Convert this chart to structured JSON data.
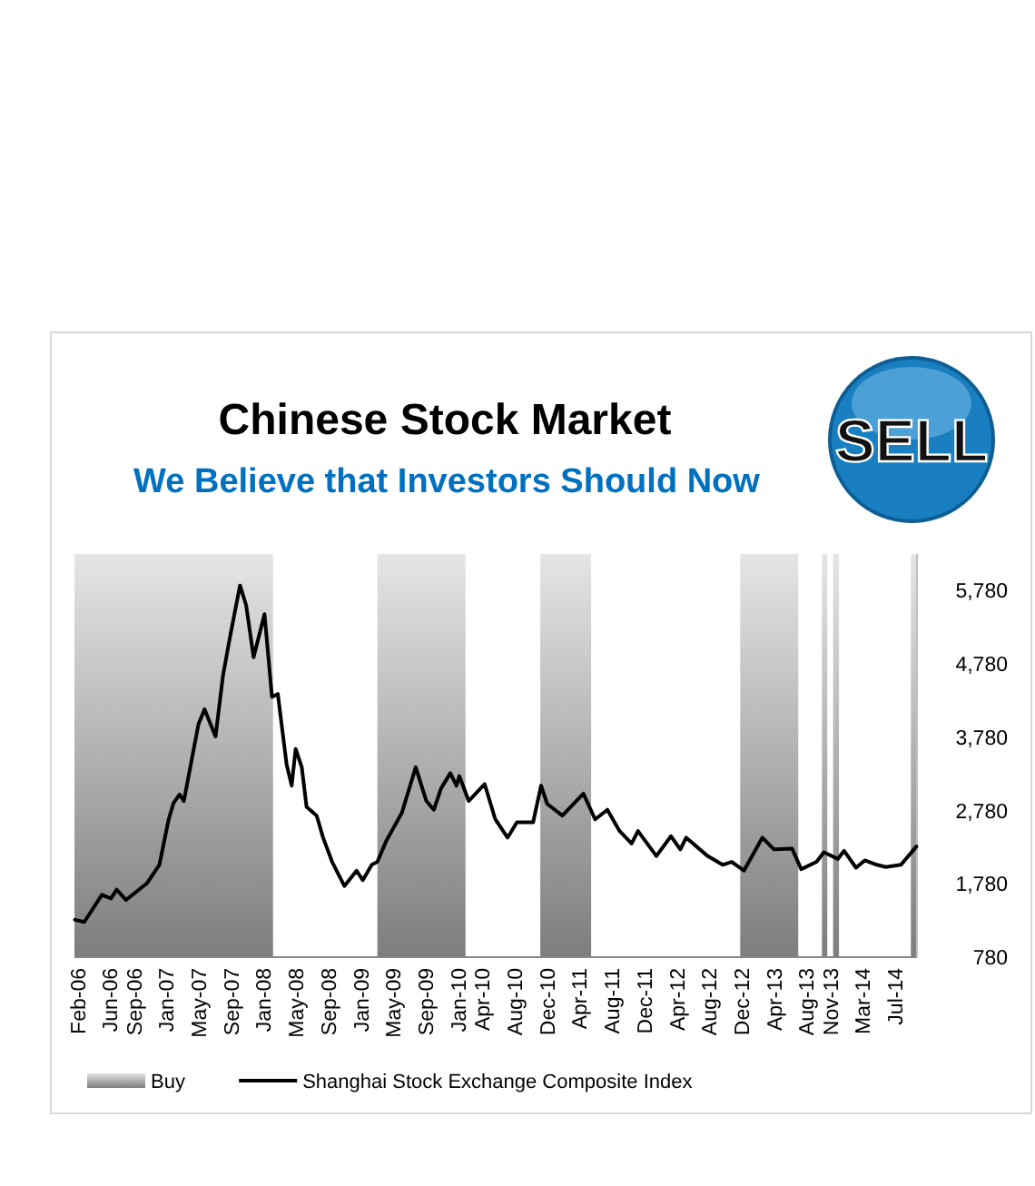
{
  "chart_data": {
    "type": "line",
    "title": "Chinese Stock Market",
    "subtitle": "We Believe that Investors Should Now",
    "annotations": [
      "SELL"
    ],
    "xlim": [
      "2006-01-20",
      "2014-09-20"
    ],
    "xticks": [
      {
        "value": "2006-02-01",
        "label": "Feb-06"
      },
      {
        "value": "2006-06-01",
        "label": "Jun-06"
      },
      {
        "value": "2006-09-01",
        "label": "Sep-06"
      },
      {
        "value": "2007-01-01",
        "label": "Jan-07"
      },
      {
        "value": "2007-05-01",
        "label": "May-07"
      },
      {
        "value": "2007-09-01",
        "label": "Sep-07"
      },
      {
        "value": "2008-01-01",
        "label": "Jan-08"
      },
      {
        "value": "2008-05-01",
        "label": "May-08"
      },
      {
        "value": "2008-09-01",
        "label": "Sep-08"
      },
      {
        "value": "2009-01-01",
        "label": "Jan-09"
      },
      {
        "value": "2009-05-01",
        "label": "May-09"
      },
      {
        "value": "2009-09-01",
        "label": "Sep-09"
      },
      {
        "value": "2010-01-01",
        "label": "Jan-10"
      },
      {
        "value": "2010-04-01",
        "label": "Apr-10"
      },
      {
        "value": "2010-08-01",
        "label": "Aug-10"
      },
      {
        "value": "2010-12-01",
        "label": "Dec-10"
      },
      {
        "value": "2011-04-01",
        "label": "Apr-11"
      },
      {
        "value": "2011-08-01",
        "label": "Aug-11"
      },
      {
        "value": "2011-12-01",
        "label": "Dec-11"
      },
      {
        "value": "2012-04-01",
        "label": "Apr-12"
      },
      {
        "value": "2012-08-01",
        "label": "Aug-12"
      },
      {
        "value": "2012-12-01",
        "label": "Dec-12"
      },
      {
        "value": "2013-04-01",
        "label": "Apr-13"
      },
      {
        "value": "2013-08-01",
        "label": "Aug-13"
      },
      {
        "value": "2013-11-01",
        "label": "Nov-13"
      },
      {
        "value": "2014-03-01",
        "label": "Mar-14"
      },
      {
        "value": "2014-07-01",
        "label": "Jul-14"
      }
    ],
    "ylim": [
      780,
      6280
    ],
    "yticks": [
      780,
      {
        "value": 1780,
        "label": "1,780"
      },
      {
        "value": 2780,
        "label": "2,780"
      },
      {
        "value": 3780,
        "label": "3,780"
      },
      {
        "value": 4780,
        "label": "4,780"
      },
      {
        "value": 5780,
        "label": "5,780"
      }
    ],
    "grid": false,
    "legend": "bottom",
    "line_style": "solid",
    "marker": "none",
    "bands": [
      {
        "axis": "x",
        "from": "2006-01-20",
        "to": "2008-02-05",
        "label": "Buy",
        "color": "#a6a6a6"
      },
      {
        "axis": "x",
        "from": "2009-03-03",
        "to": "2010-01-28",
        "color": "#a6a6a6"
      },
      {
        "axis": "x",
        "from": "2010-11-05",
        "to": "2011-05-15",
        "color": "#a6a6a6"
      },
      {
        "axis": "x",
        "from": "2012-11-25",
        "to": "2013-07-01",
        "color": "#a6a6a6"
      },
      {
        "axis": "x",
        "from": "2013-09-28",
        "to": "2013-10-18",
        "color": "#a6a6a6"
      },
      {
        "axis": "x",
        "from": "2013-11-09",
        "to": "2013-12-01",
        "color": "#a6a6a6"
      },
      {
        "axis": "x",
        "from": "2014-08-28",
        "to": "2014-09-20",
        "color": "#a6a6a6"
      }
    ],
    "series": [
      {
        "name": "Shanghai Stock Exchange Composite Index",
        "color": "#000000",
        "x": [
          "2006-01-22",
          "2006-02-26",
          "2006-05-03",
          "2006-06-06",
          "2006-06-28",
          "2006-08-02",
          "2006-10-20",
          "2006-12-05",
          "2007-01-09",
          "2007-01-27",
          "2007-02-19",
          "2007-03-07",
          "2007-05-01",
          "2007-05-24",
          "2007-07-04",
          "2007-08-01",
          "2007-08-28",
          "2007-10-04",
          "2007-10-27",
          "2007-11-24",
          "2008-01-04",
          "2008-02-01",
          "2008-02-23",
          "2008-03-27",
          "2008-04-15",
          "2008-04-30",
          "2008-05-23",
          "2008-06-10",
          "2008-07-18",
          "2008-08-11",
          "2008-09-14",
          "2008-10-30",
          "2008-12-15",
          "2009-01-07",
          "2009-02-10",
          "2009-03-03",
          "2009-04-06",
          "2009-06-03",
          "2009-07-25",
          "2009-09-03",
          "2009-10-01",
          "2009-10-28",
          "2009-12-02",
          "2009-12-25",
          "2010-01-05",
          "2010-02-09",
          "2010-04-10",
          "2010-05-20",
          "2010-07-05",
          "2010-08-09",
          "2010-10-09",
          "2010-11-08",
          "2010-12-01",
          "2011-01-27",
          "2011-04-16",
          "2011-05-30",
          "2011-07-15",
          "2011-08-30",
          "2011-10-14",
          "2011-11-07",
          "2012-01-15",
          "2012-03-10",
          "2012-04-14",
          "2012-05-06",
          "2012-07-25",
          "2012-09-20",
          "2012-10-24",
          "2012-12-09",
          "2013-02-16",
          "2013-04-01",
          "2013-06-08",
          "2013-07-12",
          "2013-09-08",
          "2013-10-05",
          "2013-11-27",
          "2013-12-20",
          "2014-02-03",
          "2014-03-08",
          "2014-04-22",
          "2014-05-26",
          "2014-07-22",
          "2014-09-18"
        ],
        "values": [
          1290,
          1260,
          1630,
          1580,
          1700,
          1560,
          1790,
          2040,
          2660,
          2880,
          3000,
          2910,
          3960,
          4160,
          3790,
          4620,
          5160,
          5850,
          5580,
          4870,
          5460,
          4330,
          4370,
          3410,
          3120,
          3620,
          3370,
          2830,
          2710,
          2410,
          2080,
          1750,
          1960,
          1830,
          2040,
          2080,
          2370,
          2750,
          3370,
          2910,
          2790,
          3080,
          3290,
          3120,
          3250,
          2910,
          3140,
          2660,
          2410,
          2620,
          2620,
          3120,
          2870,
          2710,
          3010,
          2660,
          2790,
          2500,
          2330,
          2500,
          2160,
          2430,
          2250,
          2410,
          2160,
          2040,
          2080,
          1960,
          2410,
          2250,
          2260,
          1980,
          2080,
          2210,
          2120,
          2230,
          2000,
          2100,
          2040,
          2010,
          2040,
          2290
        ]
      }
    ]
  }
}
